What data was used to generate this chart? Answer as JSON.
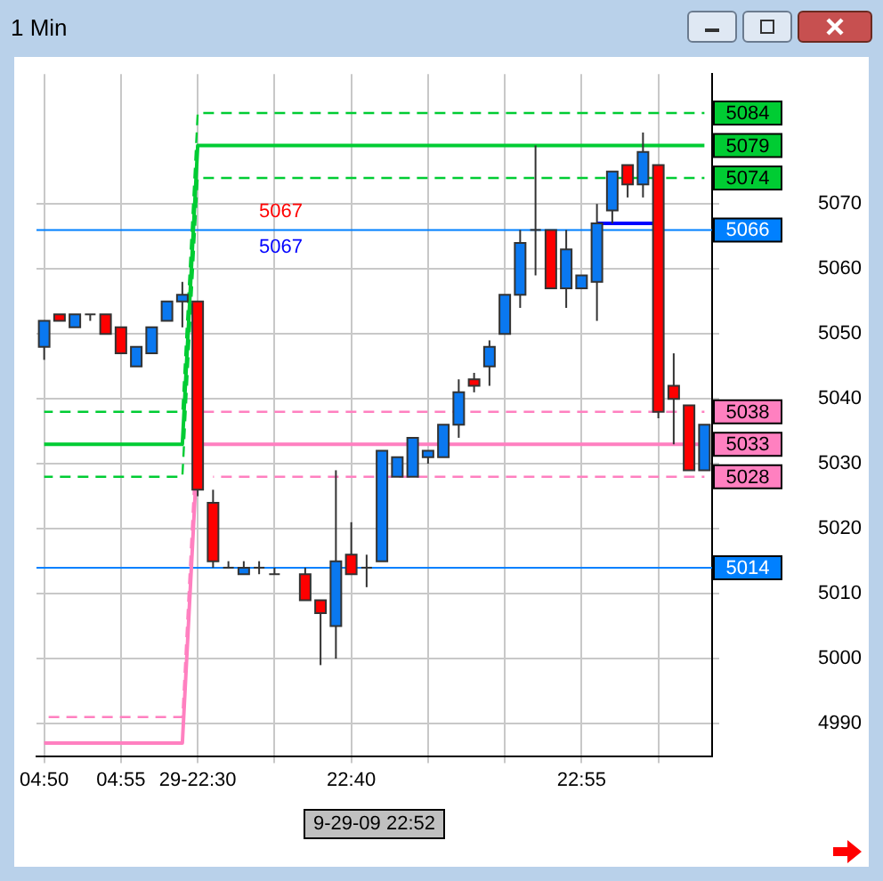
{
  "chart_data": {
    "type": "candlestick",
    "title": "1 Min",
    "categories": [
      "04:50",
      null,
      null,
      null,
      null,
      "04:55",
      null,
      null,
      null,
      null,
      "29-22:30",
      null,
      null,
      null,
      null,
      null,
      null,
      null,
      null,
      null,
      "22:40",
      null,
      null,
      null,
      null,
      null,
      null,
      null,
      null,
      null,
      null,
      null,
      null,
      null,
      null,
      "22:55",
      null,
      null,
      null,
      null,
      null,
      null,
      null,
      null
    ],
    "ohlc": [
      [
        5048,
        5052,
        5046,
        5052
      ],
      [
        5053,
        5053,
        5052,
        5052
      ],
      [
        5051,
        5053,
        5051,
        5053
      ],
      [
        5053,
        5053,
        5052,
        5053
      ],
      [
        5053,
        5053,
        5050,
        5050
      ],
      [
        5051,
        5051,
        5047,
        5047
      ],
      [
        5045,
        5048,
        5045,
        5048
      ],
      [
        5047,
        5051,
        5047,
        5051
      ],
      [
        5052,
        5055,
        5052,
        5055
      ],
      [
        5055,
        5058,
        5051,
        5056
      ],
      [
        5055,
        5055,
        5025,
        5026
      ],
      [
        5024,
        5026,
        5014,
        5015
      ],
      [
        5014,
        5015,
        5014,
        5014
      ],
      [
        5013,
        5015,
        5013,
        5014
      ],
      [
        5014,
        5015,
        5013,
        5014
      ],
      [
        5013,
        5014,
        5013,
        5013
      ],
      null,
      [
        5013,
        5014,
        5009,
        5009
      ],
      [
        5009,
        5009,
        4999,
        5007
      ],
      [
        5005,
        5029,
        5000,
        5015
      ],
      [
        5016,
        5021,
        5013,
        5013
      ],
      [
        5014,
        5016,
        5011,
        5014
      ],
      [
        5015,
        5032,
        5015,
        5032
      ],
      [
        5028,
        5031,
        5028,
        5031
      ],
      [
        5028,
        5034,
        5028,
        5034
      ],
      [
        5031,
        5032,
        5030,
        5032
      ],
      [
        5031,
        5036,
        5031,
        5036
      ],
      [
        5036,
        5043,
        5034,
        5041
      ],
      [
        5043,
        5044,
        5041,
        5042
      ],
      [
        5045,
        5049,
        5042,
        5048
      ],
      [
        5050,
        5056,
        5050,
        5056
      ],
      [
        5056,
        5066,
        5054,
        5064
      ],
      [
        5066,
        5079,
        5059,
        5066
      ],
      [
        5066,
        5066,
        5057,
        5057
      ],
      [
        5057,
        5066,
        5054,
        5063
      ],
      [
        5057,
        5059,
        5057,
        5059
      ],
      [
        5058,
        5070,
        5052,
        5067
      ],
      [
        5069,
        5075,
        5067,
        5075
      ],
      [
        5076,
        5076,
        5071,
        5073
      ],
      [
        5073,
        5081,
        5071,
        5078
      ],
      [
        5076,
        5076,
        5037,
        5038
      ],
      [
        5042,
        5047,
        5033,
        5040
      ],
      [
        5039,
        5039,
        5029,
        5029
      ],
      [
        5029,
        5036,
        5029,
        5036
      ]
    ],
    "colors": [
      "#0a78f0",
      "#ff0000",
      "#0a78f0",
      "#333333",
      "#ff0000",
      "#ff0000",
      "#0a78f0",
      "#0a78f0",
      "#0a78f0",
      "#0a78f0",
      "#ff0000",
      "#ff0000",
      "#333333",
      "#0a78f0",
      "#333333",
      "#333333",
      null,
      "#ff0000",
      "#ff0000",
      "#0a78f0",
      "#ff0000",
      "#333333",
      "#0a78f0",
      "#0a78f0",
      "#0a78f0",
      "#0a78f0",
      "#0a78f0",
      "#0a78f0",
      "#ff0000",
      "#0a78f0",
      "#0a78f0",
      "#0a78f0",
      "#333333",
      "#ff0000",
      "#0a78f0",
      "#0a78f0",
      "#0a78f0",
      "#0a78f0",
      "#ff0000",
      "#0a78f0",
      "#ff0000",
      "#ff0000",
      "#ff0000",
      "#0a78f0"
    ],
    "series": [
      {
        "type": "line",
        "color": "#00cc33",
        "line_style": "solid",
        "values": [
          5033,
          5033,
          5033,
          5033,
          5033,
          5033,
          5033,
          5033,
          5033,
          5033,
          5079,
          5079,
          5079,
          5079,
          5079,
          5079,
          5079,
          5079,
          5079,
          5079,
          5079,
          5079,
          5079,
          5079,
          5079,
          5079,
          5079,
          5079,
          5079,
          5079,
          5079,
          5079,
          5079,
          5079,
          5079,
          5079,
          5079,
          5079,
          5079,
          5079,
          5079,
          5079,
          5079,
          5079
        ],
        "value_labels": [
          null,
          null,
          null,
          null,
          null,
          null,
          null,
          null,
          null,
          null,
          null,
          null,
          null,
          null,
          null,
          null,
          null,
          null,
          null,
          null,
          null,
          null,
          null,
          null,
          null,
          null,
          null,
          null,
          null,
          null,
          null,
          null,
          null,
          null,
          null,
          null,
          null,
          null,
          null,
          null,
          null,
          null,
          null,
          "5079"
        ]
      },
      {
        "type": "line",
        "color": "#00cc33",
        "line_style": "dashed",
        "values": [
          5038,
          5038,
          5038,
          5038,
          5038,
          5038,
          5038,
          5038,
          5038,
          5038,
          5084,
          5084,
          5084,
          5084,
          5084,
          5084,
          5084,
          5084,
          5084,
          5084,
          5084,
          5084,
          5084,
          5084,
          5084,
          5084,
          5084,
          5084,
          5084,
          5084,
          5084,
          5084,
          5084,
          5084,
          5084,
          5084,
          5084,
          5084,
          5084,
          5084,
          5084,
          5084,
          5084,
          5084
        ],
        "value_labels": [
          null,
          null,
          null,
          null,
          null,
          null,
          null,
          null,
          null,
          null,
          null,
          null,
          null,
          null,
          null,
          null,
          null,
          null,
          null,
          null,
          null,
          null,
          null,
          null,
          null,
          null,
          null,
          null,
          null,
          null,
          null,
          null,
          null,
          null,
          null,
          null,
          null,
          null,
          null,
          null,
          null,
          null,
          null,
          "5084"
        ]
      },
      {
        "type": "line",
        "color": "#00cc33",
        "line_style": "dashed",
        "values": [
          5028,
          5028,
          5028,
          5028,
          5028,
          5028,
          5028,
          5028,
          5028,
          5028,
          5074,
          5074,
          5074,
          5074,
          5074,
          5074,
          5074,
          5074,
          5074,
          5074,
          5074,
          5074,
          5074,
          5074,
          5074,
          5074,
          5074,
          5074,
          5074,
          5074,
          5074,
          5074,
          5074,
          5074,
          5074,
          5074,
          5074,
          null,
          5074,
          5074,
          5074,
          5074,
          5074,
          5074
        ],
        "value_labels": [
          null,
          null,
          null,
          null,
          null,
          null,
          null,
          null,
          null,
          null,
          null,
          null,
          null,
          null,
          null,
          null,
          null,
          null,
          null,
          null,
          null,
          null,
          null,
          null,
          null,
          null,
          null,
          null,
          null,
          null,
          null,
          null,
          null,
          null,
          null,
          null,
          null,
          null,
          null,
          null,
          null,
          null,
          null,
          "5074"
        ]
      },
      {
        "type": "line",
        "color": "#ff80c0",
        "line_style": "solid",
        "values": [
          4987,
          4987,
          4987,
          4987,
          4987,
          4987,
          4987,
          4987,
          4987,
          4987,
          5033,
          5033,
          5033,
          5033,
          5033,
          5033,
          5033,
          5033,
          5033,
          5033,
          5033,
          5033,
          5033,
          5033,
          5033,
          5033,
          5033,
          5033,
          5033,
          5033,
          5033,
          5033,
          5033,
          5033,
          5033,
          5033,
          5033,
          5033,
          5033,
          5033,
          5033,
          5033,
          5033,
          5033
        ],
        "value_labels": [
          null,
          null,
          null,
          null,
          null,
          null,
          null,
          null,
          null,
          null,
          null,
          null,
          null,
          null,
          null,
          null,
          null,
          null,
          null,
          null,
          null,
          null,
          null,
          null,
          null,
          null,
          null,
          null,
          null,
          null,
          null,
          null,
          null,
          null,
          null,
          null,
          null,
          null,
          null,
          null,
          null,
          null,
          null,
          "5033"
        ]
      },
      {
        "type": "line",
        "color": "#ff80c0",
        "line_style": "dashed",
        "values": [
          4991,
          4991,
          4991,
          4991,
          4991,
          4991,
          4991,
          4991,
          4991,
          4991,
          5038,
          5038,
          5038,
          5038,
          5038,
          5038,
          5038,
          5038,
          5038,
          5038,
          5038,
          5038,
          5038,
          5038,
          5038,
          5038,
          5038,
          5038,
          5038,
          5038,
          5038,
          5038,
          5038,
          5038,
          5038,
          5038,
          5038,
          5038,
          5038,
          5038,
          null,
          5038,
          null,
          5038
        ],
        "value_labels": [
          null,
          null,
          null,
          null,
          null,
          null,
          null,
          null,
          null,
          null,
          null,
          null,
          null,
          null,
          null,
          null,
          null,
          null,
          null,
          null,
          null,
          null,
          null,
          null,
          null,
          null,
          null,
          null,
          null,
          null,
          null,
          null,
          null,
          null,
          null,
          null,
          null,
          null,
          null,
          null,
          null,
          null,
          null,
          "5038"
        ]
      },
      {
        "type": "line",
        "color": "#ff80c0",
        "line_style": "dashed",
        "values": [
          null,
          null,
          null,
          null,
          null,
          null,
          null,
          null,
          null,
          null,
          null,
          5028,
          5028,
          5028,
          5028,
          5028,
          5028,
          5028,
          5028,
          5028,
          5028,
          5028,
          5028,
          5028,
          5028,
          5028,
          5028,
          5028,
          5028,
          5028,
          5028,
          5028,
          5028,
          5028,
          5028,
          5028,
          5028,
          5028,
          5028,
          5028,
          5028,
          5028,
          5028,
          5028
        ],
        "value_labels": [
          null,
          null,
          null,
          null,
          null,
          null,
          null,
          null,
          null,
          null,
          null,
          null,
          null,
          null,
          null,
          null,
          null,
          null,
          null,
          null,
          null,
          null,
          null,
          null,
          null,
          null,
          null,
          null,
          null,
          null,
          null,
          null,
          null,
          null,
          null,
          null,
          null,
          null,
          null,
          null,
          null,
          null,
          null,
          "5028"
        ]
      },
      {
        "type": "line",
        "color": "#0000ff",
        "line_style": "solid",
        "values": [
          null,
          null,
          null,
          null,
          null,
          null,
          null,
          null,
          null,
          null,
          null,
          null,
          null,
          null,
          null,
          null,
          null,
          null,
          null,
          null,
          null,
          null,
          null,
          null,
          null,
          null,
          null,
          null,
          null,
          null,
          null,
          null,
          null,
          null,
          null,
          null,
          5067,
          5067,
          5067,
          5067,
          5067,
          null,
          null,
          null
        ]
      }
    ],
    "ref_lines": [
      {
        "axis": "y",
        "value": 5066,
        "label": "5066",
        "color": "#0080ff"
      },
      {
        "axis": "y",
        "value": 5014,
        "label": "5014",
        "color": "#0080ff"
      }
    ],
    "annotations": [
      {
        "text": "5067",
        "y": 5067
      },
      {
        "text": "5067",
        "y": 5067
      },
      "9-29-09 22:52"
    ],
    "ylim": [
      4985,
      5090
    ],
    "yticks": [
      4990,
      5000,
      5010,
      5020,
      5030,
      5040,
      5050,
      5060,
      5070
    ],
    "grid": true,
    "legend": false
  }
}
